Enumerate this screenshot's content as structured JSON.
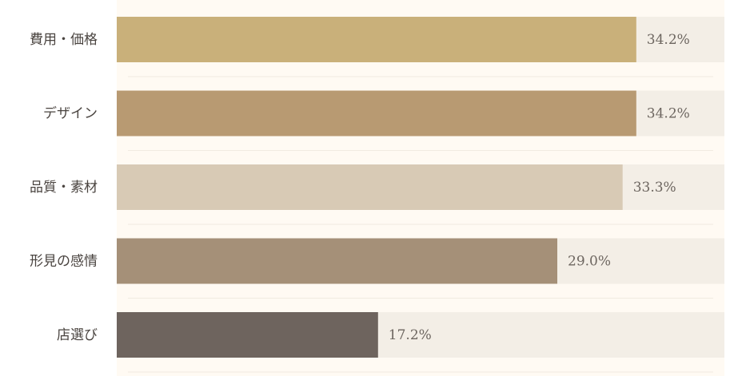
{
  "chart_data": {
    "type": "bar",
    "orientation": "horizontal",
    "categories": [
      "費用・価格",
      "デザイン",
      "品質・素材",
      "形見の感情",
      "店選び"
    ],
    "values": [
      34.2,
      34.2,
      33.3,
      29.0,
      17.2
    ],
    "value_labels": [
      "34.2%",
      "34.2%",
      "33.3%",
      "29.0%",
      "17.2%"
    ],
    "colors": [
      "#c9b07a",
      "#b89a72",
      "#d8cab5",
      "#a59078",
      "#6e645e"
    ],
    "xlim": [
      0,
      40
    ]
  }
}
